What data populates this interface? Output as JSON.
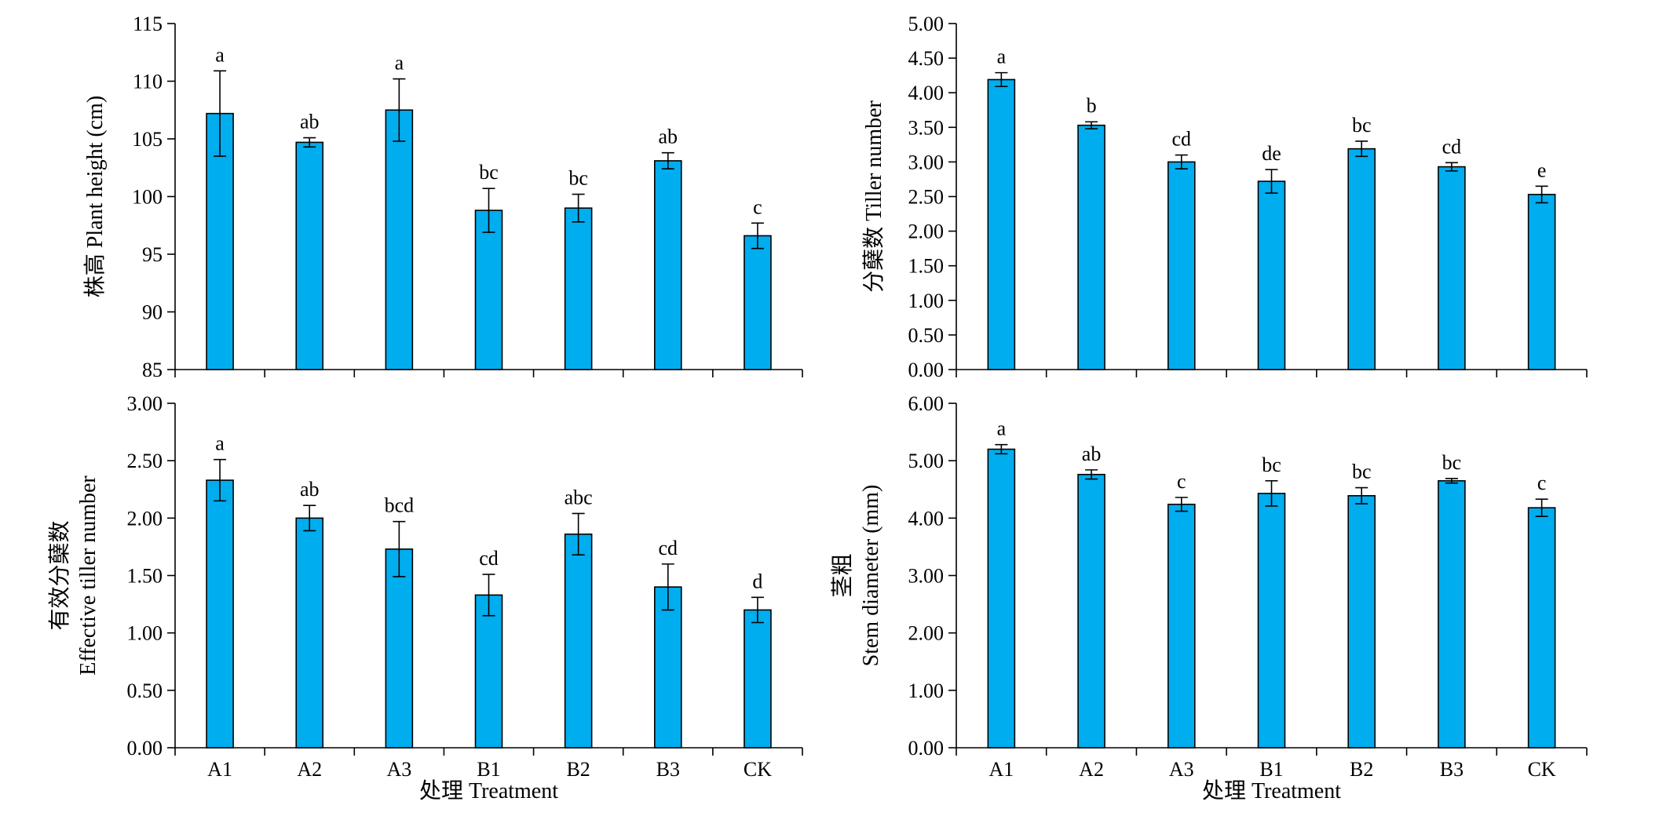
{
  "colors": {
    "bar_fill": "#00adef",
    "axis": "#000000"
  },
  "chart_data": [
    {
      "id": "plant-height",
      "type": "bar",
      "categories": [
        "A1",
        "A2",
        "A3",
        "B1",
        "B2",
        "B3",
        "CK"
      ],
      "values": [
        107.2,
        104.7,
        107.5,
        98.8,
        99.0,
        103.1,
        96.6
      ],
      "errors": [
        3.7,
        0.4,
        2.7,
        1.9,
        1.2,
        0.7,
        1.1
      ],
      "sig_letters": [
        "a",
        "ab",
        "a",
        "bc",
        "bc",
        "ab",
        "c"
      ],
      "ylim": [
        85,
        115
      ],
      "yticks": [
        "85",
        "90",
        "95",
        "100",
        "105",
        "110",
        "115"
      ],
      "ylabel_lines": [
        "株高 Plant height (cm)"
      ],
      "xlabel": "",
      "show_xtick_labels": false
    },
    {
      "id": "tiller-number",
      "type": "bar",
      "categories": [
        "A1",
        "A2",
        "A3",
        "B1",
        "B2",
        "B3",
        "CK"
      ],
      "values": [
        4.19,
        3.53,
        3.0,
        2.72,
        3.19,
        2.93,
        2.53
      ],
      "errors": [
        0.1,
        0.05,
        0.1,
        0.17,
        0.11,
        0.06,
        0.12
      ],
      "sig_letters": [
        "a",
        "b",
        "cd",
        "de",
        "bc",
        "cd",
        "e"
      ],
      "ylim": [
        0,
        5
      ],
      "yticks": [
        "0.00",
        "0.50",
        "1.00",
        "1.50",
        "2.00",
        "2.50",
        "3.00",
        "3.50",
        "4.00",
        "4.50",
        "5.00"
      ],
      "ylabel_lines": [
        "分蘖数 Tiller number"
      ],
      "xlabel": "",
      "show_xtick_labels": false
    },
    {
      "id": "effective-tiller-number",
      "type": "bar",
      "categories": [
        "A1",
        "A2",
        "A3",
        "B1",
        "B2",
        "B3",
        "CK"
      ],
      "values": [
        2.33,
        2.0,
        1.73,
        1.33,
        1.86,
        1.4,
        1.2
      ],
      "errors": [
        0.18,
        0.11,
        0.24,
        0.18,
        0.18,
        0.2,
        0.11
      ],
      "sig_letters": [
        "a",
        "ab",
        "bcd",
        "cd",
        "abc",
        "cd",
        "d"
      ],
      "ylim": [
        0,
        3
      ],
      "yticks": [
        "0.00",
        "0.50",
        "1.00",
        "1.50",
        "2.00",
        "2.50",
        "3.00"
      ],
      "ylabel_lines": [
        "有效分蘖数",
        "Effective tiller number"
      ],
      "xlabel": "处理 Treatment",
      "show_xtick_labels": true
    },
    {
      "id": "stem-diameter",
      "type": "bar",
      "categories": [
        "A1",
        "A2",
        "A3",
        "B1",
        "B2",
        "B3",
        "CK"
      ],
      "values": [
        5.2,
        4.76,
        4.24,
        4.43,
        4.39,
        4.65,
        4.18
      ],
      "errors": [
        0.08,
        0.08,
        0.12,
        0.22,
        0.14,
        0.04,
        0.15
      ],
      "sig_letters": [
        "a",
        "ab",
        "c",
        "bc",
        "bc",
        "bc",
        "c"
      ],
      "ylim": [
        0,
        6
      ],
      "yticks": [
        "0.00",
        "1.00",
        "2.00",
        "3.00",
        "4.00",
        "5.00",
        "6.00"
      ],
      "ylabel_lines": [
        "茎粗",
        "Stem diameter (mm)"
      ],
      "xlabel": "处理 Treatment",
      "show_xtick_labels": true
    }
  ]
}
